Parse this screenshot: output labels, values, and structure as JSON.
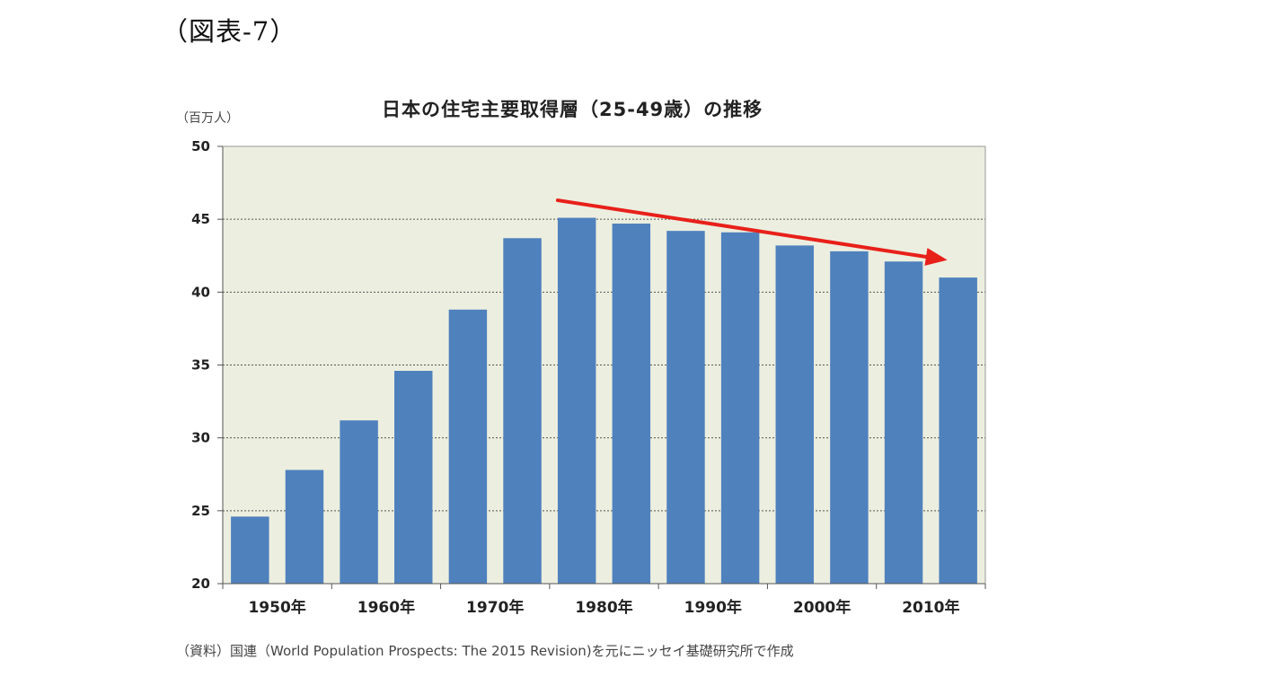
{
  "figure_label": "（図表-7）",
  "source_note": "（資料）国連（World Population Prospects: The 2015 Revision)を元にニッセイ基礎研究所で作成",
  "colors": {
    "plot_background": "#eceedf",
    "bar": "#4f81bd",
    "arrow": "#e8201a",
    "grid": "#555555"
  },
  "chart_data": {
    "type": "bar",
    "title": "日本の住宅主要取得層（25-49歳）の推移",
    "ylabel": "（百万人）",
    "xlabel": "",
    "categories": [
      "1950",
      "1955",
      "1960",
      "1965",
      "1970",
      "1975",
      "1980",
      "1985",
      "1990",
      "1995",
      "2000",
      "2005",
      "2010",
      "2015"
    ],
    "series": [
      {
        "values": [
          24.6,
          27.8,
          31.2,
          34.6,
          38.8,
          43.7,
          45.1,
          44.7,
          44.2,
          44.1,
          43.2,
          42.8,
          42.1,
          41.0
        ]
      }
    ],
    "x_tick_labels": [
      {
        "category": "1950",
        "text": "1950年"
      },
      {
        "category": "1960",
        "text": "1960年"
      },
      {
        "category": "1970",
        "text": "1970年"
      },
      {
        "category": "1980",
        "text": "1980年"
      },
      {
        "category": "1990",
        "text": "1990年"
      },
      {
        "category": "2000",
        "text": "2000年"
      },
      {
        "category": "2010",
        "text": "2010年"
      }
    ],
    "ylim": [
      20,
      50
    ],
    "yticks": [
      20,
      25,
      30,
      35,
      40,
      45,
      50
    ],
    "grid": true,
    "annotations": [
      {
        "type": "trend-arrow",
        "from_category": "1980",
        "from_value": 46.3,
        "to_category": "2015",
        "to_value": 42.2
      }
    ]
  }
}
